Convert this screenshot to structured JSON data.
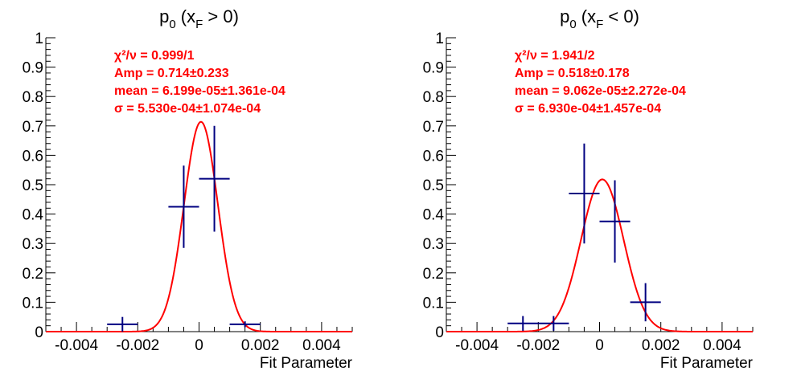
{
  "chart_data": [
    {
      "type": "scatter",
      "title_main": "p",
      "title_sub0": "0",
      "title_mid": " (x",
      "title_subF": "F",
      "title_end": " > 0)",
      "xlabel": "Fit Parameter",
      "xlim": [
        -0.005,
        0.005
      ],
      "ylim": [
        0,
        1
      ],
      "x_ticks": [
        -0.004,
        -0.002,
        0,
        0.002,
        0.004
      ],
      "x_tick_labels": [
        "-0.004",
        "-0.002",
        "0",
        "0.002",
        "0.004"
      ],
      "y_ticks": [
        0,
        0.1,
        0.2,
        0.3,
        0.4,
        0.5,
        0.6,
        0.7,
        0.8,
        0.9,
        1
      ],
      "y_tick_labels": [
        "0",
        "0.1",
        "0.2",
        "0.3",
        "0.4",
        "0.5",
        "0.6",
        "0.7",
        "0.8",
        "0.9",
        "1"
      ],
      "points": [
        {
          "x": -0.0025,
          "xerr": 0.0005,
          "y": 0.025,
          "yerr": 0.025
        },
        {
          "x": -0.0005,
          "xerr": 0.0005,
          "y": 0.425,
          "yerr": 0.14
        },
        {
          "x": 0.0005,
          "xerr": 0.0005,
          "y": 0.52,
          "yerr": 0.18
        },
        {
          "x": 0.0015,
          "xerr": 0.0005,
          "y": 0.025,
          "yerr": 0.01
        }
      ],
      "fit": {
        "amp": 0.714,
        "mean": 6.199e-05,
        "sigma": 0.000553
      },
      "stats": [
        "χ²/ν = 0.999/1",
        "Amp = 0.714±0.233",
        "mean = 6.199e-05±1.361e-04",
        "σ = 5.530e-04±1.074e-04"
      ]
    },
    {
      "type": "scatter",
      "title_main": "p",
      "title_sub0": "0",
      "title_mid": " (x",
      "title_subF": "F",
      "title_end": " < 0)",
      "xlabel": "Fit Parameter",
      "xlim": [
        -0.005,
        0.005
      ],
      "ylim": [
        0,
        1
      ],
      "x_ticks": [
        -0.004,
        -0.002,
        0,
        0.002,
        0.004
      ],
      "x_tick_labels": [
        "-0.004",
        "-0.002",
        "0",
        "0.002",
        "0.004"
      ],
      "y_ticks": [
        0,
        0.1,
        0.2,
        0.3,
        0.4,
        0.5,
        0.6,
        0.7,
        0.8,
        0.9,
        1
      ],
      "y_tick_labels": [
        "0",
        "0.1",
        "0.2",
        "0.3",
        "0.4",
        "0.5",
        "0.6",
        "0.7",
        "0.8",
        "0.9",
        "1"
      ],
      "points": [
        {
          "x": -0.0025,
          "xerr": 0.0005,
          "y": 0.028,
          "yerr": 0.025
        },
        {
          "x": -0.0015,
          "xerr": 0.0005,
          "y": 0.028,
          "yerr": 0.025
        },
        {
          "x": -0.0005,
          "xerr": 0.0005,
          "y": 0.47,
          "yerr": 0.17
        },
        {
          "x": 0.0005,
          "xerr": 0.0005,
          "y": 0.375,
          "yerr": 0.14
        },
        {
          "x": 0.0015,
          "xerr": 0.0005,
          "y": 0.1,
          "yerr": 0.065
        }
      ],
      "fit": {
        "amp": 0.518,
        "mean": 9.062e-05,
        "sigma": 0.000693
      },
      "stats": [
        "χ²/ν = 1.941/2",
        "Amp = 0.518±0.178",
        "mean = 9.062e-05±2.272e-04",
        "σ = 6.930e-04±1.457e-04"
      ]
    }
  ],
  "colors": {
    "fit": "#ff0000",
    "points": "#000080",
    "stats_text": "#ff0000",
    "axes": "#000000"
  }
}
